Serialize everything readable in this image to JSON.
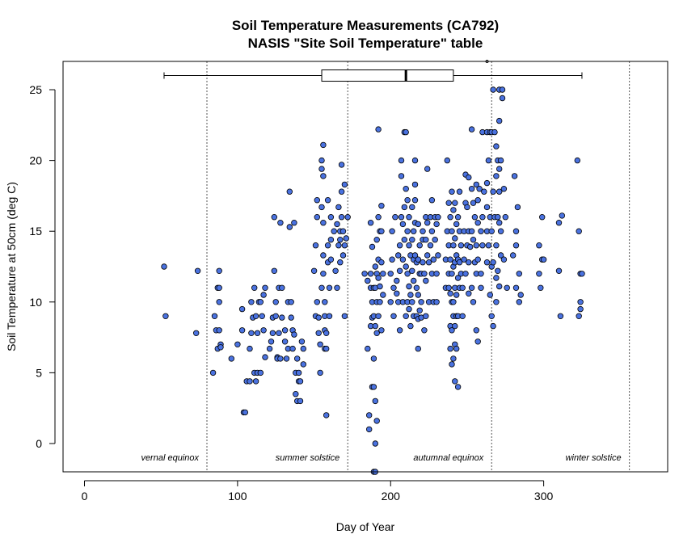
{
  "chart_data": {
    "type": "scatter",
    "title": "Soil Temperature Measurements (CA792)",
    "subtitle": "NASIS \"Site Soil Temperature\" table",
    "xlabel": "Day of Year",
    "ylabel": "Soil Temperature at 50cm (deg C)",
    "xlim": [
      -14,
      381
    ],
    "ylim": [
      -2,
      27
    ],
    "xticks": [
      0,
      100,
      200,
      300
    ],
    "yticks": [
      0,
      5,
      10,
      15,
      20,
      25
    ],
    "grid": false,
    "point_color": "#4A72E0",
    "point_stroke": "#000000",
    "reference_lines": [
      {
        "x": 80,
        "label": "vernal equinox"
      },
      {
        "x": 172,
        "label": "summer solstice"
      },
      {
        "x": 266,
        "label": "autumnal equinox"
      },
      {
        "x": 356,
        "label": "winter solstice"
      }
    ],
    "boxplot": {
      "y": 26,
      "whisker_low": 52,
      "q1": 155,
      "median": 210,
      "q3": 241,
      "whisker_high": 325,
      "outliers": [
        263,
        263
      ]
    },
    "points": [
      [
        52,
        12.5
      ],
      [
        53,
        9
      ],
      [
        73,
        7.8
      ],
      [
        74,
        12.2
      ],
      [
        84,
        5
      ],
      [
        85,
        9
      ],
      [
        86,
        8
      ],
      [
        87,
        11
      ],
      [
        87,
        6.7
      ],
      [
        88,
        12.2
      ],
      [
        88,
        11
      ],
      [
        88,
        10
      ],
      [
        89,
        7
      ],
      [
        89,
        6.8
      ],
      [
        88,
        8
      ],
      [
        96,
        6
      ],
      [
        100,
        7
      ],
      [
        103,
        9.5
      ],
      [
        103,
        8
      ],
      [
        104,
        2.2
      ],
      [
        105,
        2.2
      ],
      [
        106,
        4.4
      ],
      [
        108,
        4.4
      ],
      [
        108,
        6.7
      ],
      [
        109,
        7.8
      ],
      [
        109,
        10
      ],
      [
        110,
        8.9
      ],
      [
        111,
        5
      ],
      [
        111,
        11
      ],
      [
        112,
        4.4
      ],
      [
        112,
        9
      ],
      [
        113,
        5
      ],
      [
        113,
        7.8
      ],
      [
        114,
        10
      ],
      [
        115,
        10
      ],
      [
        115,
        5
      ],
      [
        116,
        9
      ],
      [
        117,
        8
      ],
      [
        117,
        10.5
      ],
      [
        118,
        11
      ],
      [
        118,
        6.1
      ],
      [
        121,
        6.7
      ],
      [
        122,
        7.2
      ],
      [
        123,
        7.8
      ],
      [
        123,
        8.9
      ],
      [
        124,
        16
      ],
      [
        124,
        12.2
      ],
      [
        125,
        10
      ],
      [
        125,
        9
      ],
      [
        126,
        6.1
      ],
      [
        126,
        6
      ],
      [
        127,
        11
      ],
      [
        127,
        7.8
      ],
      [
        128,
        15.6
      ],
      [
        128,
        6
      ],
      [
        129,
        11
      ],
      [
        129,
        8.9
      ],
      [
        131,
        8
      ],
      [
        131,
        7.2
      ],
      [
        132,
        6
      ],
      [
        133,
        6.7
      ],
      [
        133,
        10
      ],
      [
        134,
        17.8
      ],
      [
        134,
        15.3
      ],
      [
        135,
        10
      ],
      [
        135,
        8.9
      ],
      [
        136,
        6.7
      ],
      [
        136,
        8
      ],
      [
        137,
        15.6
      ],
      [
        137,
        7.7
      ],
      [
        138,
        3.5
      ],
      [
        138,
        5
      ],
      [
        139,
        3
      ],
      [
        139,
        6
      ],
      [
        140,
        5
      ],
      [
        140,
        4.4
      ],
      [
        141,
        4.4
      ],
      [
        141,
        3
      ],
      [
        142,
        7.2
      ],
      [
        143,
        6.7
      ],
      [
        143,
        5.6
      ],
      [
        150,
        12.2
      ],
      [
        151,
        14
      ],
      [
        151,
        9
      ],
      [
        152,
        10
      ],
      [
        152,
        17.2
      ],
      [
        152,
        16
      ],
      [
        153,
        8.9
      ],
      [
        153,
        7.8
      ],
      [
        154,
        7
      ],
      [
        154,
        5
      ],
      [
        155,
        19.4
      ],
      [
        155,
        20
      ],
      [
        155,
        16.7
      ],
      [
        155,
        11
      ],
      [
        156,
        21.1
      ],
      [
        156,
        18.9
      ],
      [
        156,
        15.6
      ],
      [
        156,
        13.3
      ],
      [
        156,
        12
      ],
      [
        157,
        10
      ],
      [
        157,
        9
      ],
      [
        157,
        8
      ],
      [
        157,
        6.7
      ],
      [
        158,
        7.8
      ],
      [
        158,
        6.7
      ],
      [
        158,
        2
      ],
      [
        159,
        17.2
      ],
      [
        159,
        14
      ],
      [
        159,
        12.8
      ],
      [
        160,
        11
      ],
      [
        160,
        9
      ],
      [
        161,
        16
      ],
      [
        161,
        14.4
      ],
      [
        161,
        13
      ],
      [
        163,
        15
      ],
      [
        164,
        12.2
      ],
      [
        165,
        15.5
      ],
      [
        165,
        11
      ],
      [
        166,
        14
      ],
      [
        166,
        16.7
      ],
      [
        167,
        14.4
      ],
      [
        167,
        15
      ],
      [
        167,
        12.8
      ],
      [
        168,
        17.8
      ],
      [
        168,
        16
      ],
      [
        168,
        19.7
      ],
      [
        169,
        13.3
      ],
      [
        169,
        15
      ],
      [
        170,
        18.3
      ],
      [
        170,
        14
      ],
      [
        170,
        9
      ],
      [
        171,
        14.5
      ],
      [
        172,
        16
      ],
      [
        183,
        12
      ],
      [
        185,
        11.5
      ],
      [
        185,
        6.7
      ],
      [
        186,
        2
      ],
      [
        186,
        1
      ],
      [
        187,
        15.6
      ],
      [
        187,
        12
      ],
      [
        187,
        11
      ],
      [
        187,
        8.3
      ],
      [
        188,
        13.9
      ],
      [
        188,
        10
      ],
      [
        188,
        8.9
      ],
      [
        188,
        4
      ],
      [
        189,
        11
      ],
      [
        189,
        9
      ],
      [
        189,
        6
      ],
      [
        189,
        4
      ],
      [
        190,
        12.5
      ],
      [
        190,
        11
      ],
      [
        190,
        8.3
      ],
      [
        190,
        3
      ],
      [
        190,
        0
      ],
      [
        191,
        14.4
      ],
      [
        191,
        12
      ],
      [
        191,
        10
      ],
      [
        191,
        7.8
      ],
      [
        191,
        1.6
      ],
      [
        192,
        22.2
      ],
      [
        192,
        16
      ],
      [
        192,
        13
      ],
      [
        192,
        11.7
      ],
      [
        192,
        9
      ],
      [
        193,
        15
      ],
      [
        193,
        11.1
      ],
      [
        193,
        10
      ],
      [
        194,
        16.8
      ],
      [
        194,
        15
      ],
      [
        194,
        12.8
      ],
      [
        195,
        12
      ],
      [
        195,
        10.5
      ],
      [
        194,
        8
      ],
      [
        189,
        -2
      ],
      [
        190,
        -2
      ],
      [
        200,
        12
      ],
      [
        200,
        10
      ],
      [
        201,
        15
      ],
      [
        201,
        13
      ],
      [
        202,
        11
      ],
      [
        202,
        9
      ],
      [
        203,
        16
      ],
      [
        204,
        11.5
      ],
      [
        204,
        10.6
      ],
      [
        205,
        13.3
      ],
      [
        205,
        10
      ],
      [
        206,
        14
      ],
      [
        206,
        12.2
      ],
      [
        206,
        8
      ],
      [
        207,
        20
      ],
      [
        207,
        18.9
      ],
      [
        207,
        16
      ],
      [
        208,
        15.5
      ],
      [
        208,
        13
      ],
      [
        208,
        10
      ],
      [
        209,
        22
      ],
      [
        209,
        16.7
      ],
      [
        209,
        14.4
      ],
      [
        210,
        22
      ],
      [
        210,
        18
      ],
      [
        210,
        12.5
      ],
      [
        210,
        9
      ],
      [
        211,
        17.2
      ],
      [
        211,
        15
      ],
      [
        211,
        12
      ],
      [
        211,
        10
      ],
      [
        212,
        16
      ],
      [
        212,
        14
      ],
      [
        212,
        11.1
      ],
      [
        212,
        9.5
      ],
      [
        213,
        13.3
      ],
      [
        213,
        10.5
      ],
      [
        213,
        8.3
      ],
      [
        214,
        16.7
      ],
      [
        214,
        14.4
      ],
      [
        214,
        12.2
      ],
      [
        214,
        10
      ],
      [
        215,
        15
      ],
      [
        215,
        13
      ],
      [
        215,
        11.5
      ],
      [
        215,
        9
      ],
      [
        216,
        20
      ],
      [
        216,
        18.3
      ],
      [
        216,
        17.2
      ],
      [
        216,
        15.6
      ],
      [
        216,
        13.3
      ],
      [
        217,
        12.8
      ],
      [
        217,
        11
      ],
      [
        217,
        9
      ],
      [
        218,
        15.5
      ],
      [
        218,
        13
      ],
      [
        218,
        10.5
      ],
      [
        218,
        8.8
      ],
      [
        218,
        6.7
      ],
      [
        219,
        14
      ],
      [
        219,
        12
      ],
      [
        219,
        9.4
      ],
      [
        220,
        12
      ],
      [
        220,
        10
      ],
      [
        220,
        8.9
      ],
      [
        221,
        15
      ],
      [
        221,
        14.4
      ],
      [
        221,
        12.8
      ],
      [
        222,
        12
      ],
      [
        222,
        8
      ],
      [
        223,
        16
      ],
      [
        223,
        14.4
      ],
      [
        223,
        11.5
      ],
      [
        223,
        9
      ],
      [
        224,
        19.4
      ],
      [
        224,
        15.6
      ],
      [
        224,
        13.3
      ],
      [
        225,
        12.8
      ],
      [
        225,
        10
      ],
      [
        226,
        16
      ],
      [
        226,
        14
      ],
      [
        227,
        17.2
      ],
      [
        227,
        15
      ],
      [
        227,
        12
      ],
      [
        228,
        13
      ],
      [
        228,
        10
      ],
      [
        229,
        16
      ],
      [
        229,
        14.4
      ],
      [
        230,
        15.5
      ],
      [
        230,
        12
      ],
      [
        230,
        10
      ],
      [
        231,
        16
      ],
      [
        231,
        13.3
      ],
      [
        236,
        13
      ],
      [
        236,
        11
      ],
      [
        237,
        20
      ],
      [
        237,
        15
      ],
      [
        238,
        17
      ],
      [
        238,
        14
      ],
      [
        238,
        12
      ],
      [
        238,
        11
      ],
      [
        239,
        16
      ],
      [
        239,
        13
      ],
      [
        239,
        10.6
      ],
      [
        239,
        8.3
      ],
      [
        239,
        6.7
      ],
      [
        240,
        17.8
      ],
      [
        240,
        15
      ],
      [
        240,
        12
      ],
      [
        240,
        10
      ],
      [
        240,
        8
      ],
      [
        240,
        5.6
      ],
      [
        241,
        16.5
      ],
      [
        241,
        14
      ],
      [
        241,
        12.5
      ],
      [
        241,
        10
      ],
      [
        241,
        9
      ],
      [
        241,
        6
      ],
      [
        242,
        17
      ],
      [
        242,
        14.5
      ],
      [
        242,
        12.8
      ],
      [
        242,
        11
      ],
      [
        242,
        8.3
      ],
      [
        242,
        7
      ],
      [
        242,
        4.4
      ],
      [
        243,
        15.5
      ],
      [
        243,
        13.3
      ],
      [
        243,
        10.5
      ],
      [
        243,
        9
      ],
      [
        243,
        6.7
      ],
      [
        244,
        16
      ],
      [
        244,
        13
      ],
      [
        244,
        11.7
      ],
      [
        244,
        9
      ],
      [
        244,
        4
      ],
      [
        245,
        17.8
      ],
      [
        245,
        15
      ],
      [
        245,
        12.8
      ],
      [
        245,
        11
      ],
      [
        246,
        14
      ],
      [
        246,
        12
      ],
      [
        247,
        11
      ],
      [
        247,
        9
      ],
      [
        248,
        15
      ],
      [
        248,
        13
      ],
      [
        249,
        19
      ],
      [
        249,
        17
      ],
      [
        249,
        12
      ],
      [
        250,
        16.7
      ],
      [
        250,
        14
      ],
      [
        251,
        18.8
      ],
      [
        251,
        15
      ],
      [
        251,
        12.8
      ],
      [
        251,
        10.6
      ],
      [
        252,
        13.9
      ],
      [
        253,
        22.2
      ],
      [
        253,
        18
      ],
      [
        253,
        15
      ],
      [
        253,
        11
      ],
      [
        254,
        17
      ],
      [
        254,
        14.4
      ],
      [
        254,
        10
      ],
      [
        255,
        16
      ],
      [
        255,
        12.8
      ],
      [
        256,
        18.3
      ],
      [
        256,
        14
      ],
      [
        256,
        12
      ],
      [
        256,
        8
      ],
      [
        257,
        17.2
      ],
      [
        257,
        15.6
      ],
      [
        257,
        13
      ],
      [
        257,
        7.2
      ],
      [
        258,
        18
      ],
      [
        259,
        11
      ],
      [
        259,
        15
      ],
      [
        259,
        12
      ],
      [
        260,
        22
      ],
      [
        260,
        16
      ],
      [
        260,
        14
      ],
      [
        261,
        17.8
      ],
      [
        263,
        22
      ],
      [
        263,
        18.4
      ],
      [
        263,
        16.7
      ],
      [
        263,
        15
      ],
      [
        263,
        12.8
      ],
      [
        264,
        20
      ],
      [
        264,
        14
      ],
      [
        265,
        22
      ],
      [
        265,
        16
      ],
      [
        265,
        10.5
      ],
      [
        266,
        22
      ],
      [
        266,
        15
      ],
      [
        266,
        12.5
      ],
      [
        266,
        9
      ],
      [
        267,
        25
      ],
      [
        267,
        17.8
      ],
      [
        267,
        12.8
      ],
      [
        267,
        8.3
      ],
      [
        268,
        22
      ],
      [
        268,
        16
      ],
      [
        269,
        21
      ],
      [
        269,
        18.9
      ],
      [
        269,
        14
      ],
      [
        269,
        11.7
      ],
      [
        269,
        10
      ],
      [
        270,
        20
      ],
      [
        270,
        16
      ],
      [
        270,
        12.2
      ],
      [
        271,
        25
      ],
      [
        271,
        22.8
      ],
      [
        271,
        19.4
      ],
      [
        271,
        17.8
      ],
      [
        271,
        15.6
      ],
      [
        271,
        11.1
      ],
      [
        272,
        20
      ],
      [
        272,
        15
      ],
      [
        272,
        13.3
      ],
      [
        273,
        25
      ],
      [
        273,
        24.4
      ],
      [
        274,
        18
      ],
      [
        274,
        13
      ],
      [
        275,
        16
      ],
      [
        276,
        11
      ],
      [
        280,
        13.3
      ],
      [
        281,
        18.9
      ],
      [
        282,
        15
      ],
      [
        282,
        14
      ],
      [
        282,
        11
      ],
      [
        283,
        16.7
      ],
      [
        284,
        10
      ],
      [
        284,
        12
      ],
      [
        285,
        10.5
      ],
      [
        297,
        14
      ],
      [
        297,
        12
      ],
      [
        298,
        11
      ],
      [
        299,
        16
      ],
      [
        299,
        13
      ],
      [
        300,
        13
      ],
      [
        310,
        15.6
      ],
      [
        310,
        12.2
      ],
      [
        311,
        9
      ],
      [
        312,
        16.1
      ],
      [
        322,
        20
      ],
      [
        323,
        15
      ],
      [
        324,
        12
      ],
      [
        324,
        10
      ],
      [
        324,
        9.5
      ],
      [
        323,
        9
      ],
      [
        325,
        12
      ]
    ]
  }
}
